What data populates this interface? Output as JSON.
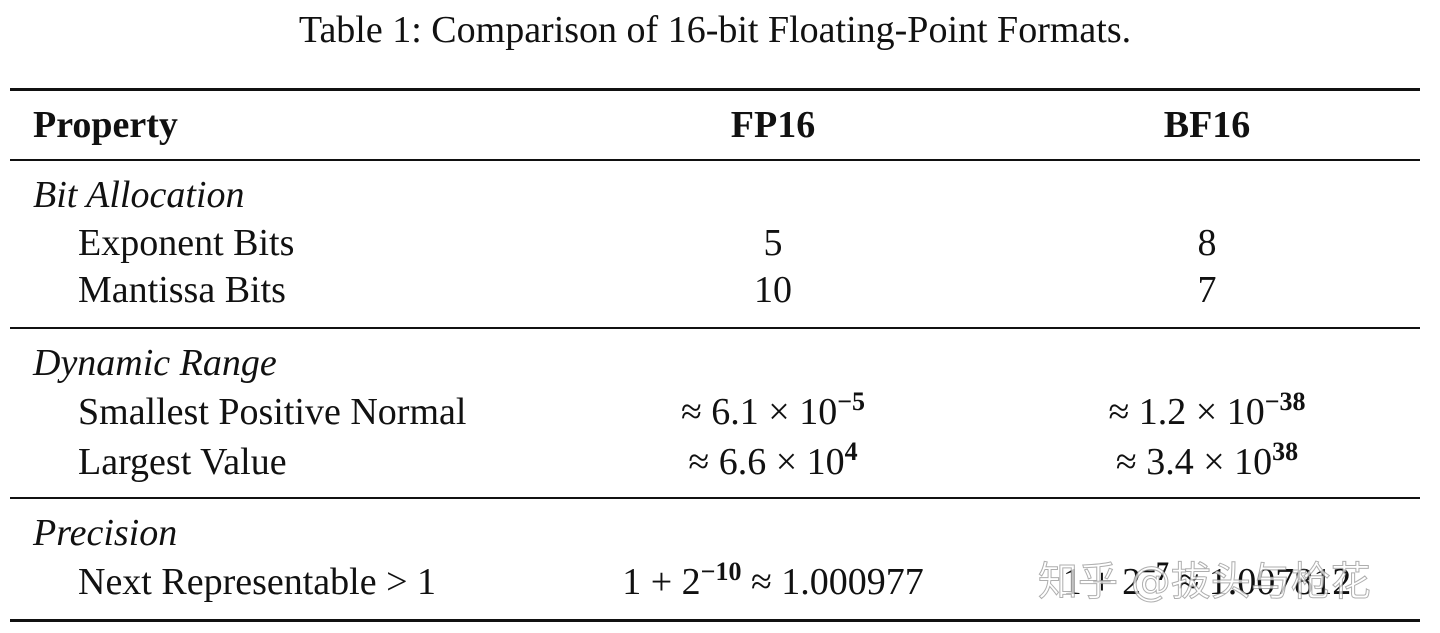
{
  "title": "Table 1: Comparison of 16-bit Floating-Point Formats.",
  "table": {
    "header": [
      "Property",
      "FP16",
      "BF16"
    ],
    "sections": [
      {
        "name": "Bit Allocation",
        "rows": [
          {
            "label": "Exponent Bits",
            "cells": [
              "5",
              "8"
            ]
          },
          {
            "label": "Mantissa Bits",
            "cells": [
              "10",
              "7"
            ]
          }
        ]
      },
      {
        "name": "Dynamic Range",
        "rows": [
          {
            "label": "Smallest Positive Normal",
            "cells": [
              {
                "base": "≈ 6.1 × 10",
                "exp": "−5"
              },
              {
                "base": "≈ 1.2 × 10",
                "exp": "−38"
              }
            ]
          },
          {
            "label": "Largest Value",
            "cells": [
              {
                "base": "≈ 6.6 × 10",
                "exp": "4"
              },
              {
                "base": "≈ 3.4 × 10",
                "exp": "38"
              }
            ]
          }
        ]
      },
      {
        "name": "Precision",
        "rows": [
          {
            "label": "Next Representable > 1",
            "cells": [
              {
                "base": "1 + 2",
                "exp": "−10",
                "rest": " ≈ 1.000977"
              },
              {
                "base": "1 + 2",
                "exp": "−7",
                "rest": " ≈ 1.007812"
              }
            ]
          }
        ]
      }
    ]
  },
  "watermark": "知乎 @拔头与枪花"
}
